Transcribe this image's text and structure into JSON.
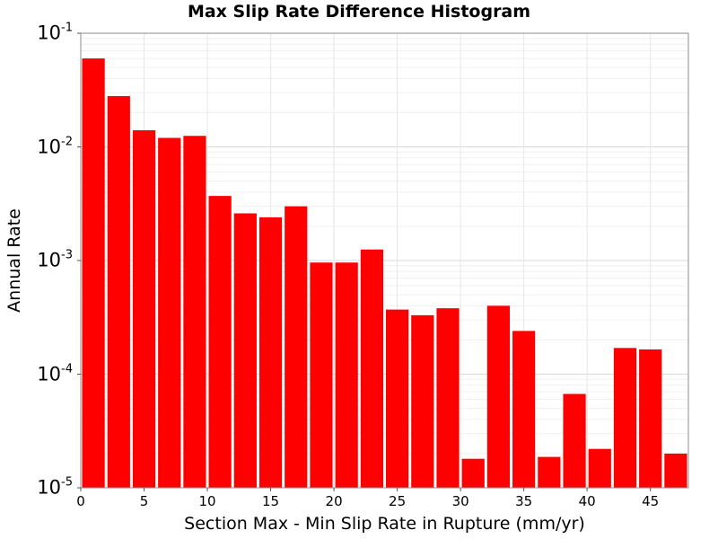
{
  "chart_data": {
    "type": "bar",
    "title": "Max Slip Rate Difference Histogram",
    "xlabel": "Section Max - Min Slip Rate in Rupture (mm/yr)",
    "ylabel": "Annual Rate",
    "yscale": "log",
    "xlim": [
      0,
      48
    ],
    "ylim": [
      1e-05,
      0.1
    ],
    "bin_width": 2,
    "x_ticks": [
      {
        "value": 0,
        "label": "0"
      },
      {
        "value": 5,
        "label": "5"
      },
      {
        "value": 10,
        "label": "10"
      },
      {
        "value": 15,
        "label": "15"
      },
      {
        "value": 20,
        "label": "20"
      },
      {
        "value": 25,
        "label": "25"
      },
      {
        "value": 30,
        "label": "30"
      },
      {
        "value": 35,
        "label": "35"
      },
      {
        "value": 40,
        "label": "40"
      },
      {
        "value": 45,
        "label": "45"
      }
    ],
    "y_ticks": [
      {
        "value": 0.1,
        "base": "10",
        "exp": "-1"
      },
      {
        "value": 0.01,
        "base": "10",
        "exp": "-2"
      },
      {
        "value": 0.001,
        "base": "10",
        "exp": "-3"
      },
      {
        "value": 0.0001,
        "base": "10",
        "exp": "-4"
      },
      {
        "value": 1e-05,
        "base": "10",
        "exp": "-5"
      }
    ],
    "grid": true,
    "bar_color": "#ff0000",
    "bars": [
      {
        "x": 1,
        "value": 0.06
      },
      {
        "x": 3,
        "value": 0.028
      },
      {
        "x": 5,
        "value": 0.014
      },
      {
        "x": 7,
        "value": 0.012
      },
      {
        "x": 9,
        "value": 0.0125
      },
      {
        "x": 11,
        "value": 0.0037
      },
      {
        "x": 13,
        "value": 0.0026
      },
      {
        "x": 15,
        "value": 0.0024
      },
      {
        "x": 17,
        "value": 0.003
      },
      {
        "x": 19,
        "value": 0.00096
      },
      {
        "x": 21,
        "value": 0.00096
      },
      {
        "x": 23,
        "value": 0.00125
      },
      {
        "x": 25,
        "value": 0.00037
      },
      {
        "x": 27,
        "value": 0.00033
      },
      {
        "x": 29,
        "value": 0.00038
      },
      {
        "x": 31,
        "value": 1.8e-05
      },
      {
        "x": 33,
        "value": 0.0004
      },
      {
        "x": 35,
        "value": 0.00024
      },
      {
        "x": 37,
        "value": 1.87e-05
      },
      {
        "x": 39,
        "value": 6.7e-05
      },
      {
        "x": 41,
        "value": 2.2e-05
      },
      {
        "x": 43,
        "value": 0.00017
      },
      {
        "x": 45,
        "value": 0.000165
      },
      {
        "x": 47,
        "value": 2e-05
      }
    ]
  }
}
